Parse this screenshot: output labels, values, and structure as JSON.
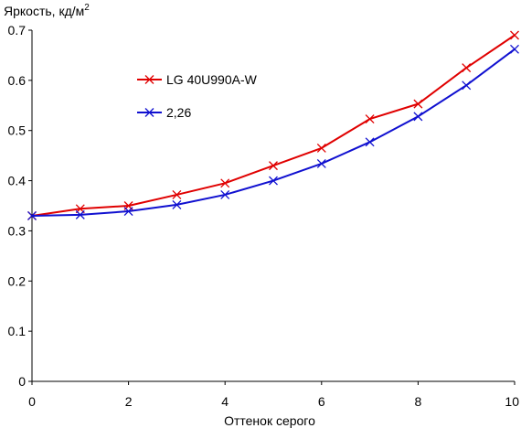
{
  "chart_data": {
    "type": "line",
    "ylabel": "Яркость, кд/м",
    "ylabel_sup": "2",
    "xlabel": "Оттенок серого",
    "xlim": [
      0,
      10
    ],
    "ylim": [
      0,
      0.7
    ],
    "x_ticks": [
      "0",
      "2",
      "4",
      "6",
      "8",
      "10"
    ],
    "y_ticks": [
      "0",
      "0.1",
      "0.2",
      "0.3",
      "0.4",
      "0.5",
      "0.6",
      "0.7"
    ],
    "grid": false,
    "legend_position": "upper-left-inside",
    "x": [
      0,
      1,
      2,
      3,
      4,
      5,
      6,
      7,
      8,
      9,
      10
    ],
    "series": [
      {
        "name": "LG 40U990A-W",
        "color": "#e00000",
        "marker": "x",
        "values": [
          0.33,
          0.344,
          0.35,
          0.372,
          0.395,
          0.43,
          0.465,
          0.523,
          0.553,
          0.625,
          0.69
        ]
      },
      {
        "name": "2,26",
        "color": "#1010d0",
        "marker": "x",
        "values": [
          0.33,
          0.332,
          0.339,
          0.352,
          0.372,
          0.4,
          0.434,
          0.477,
          0.528,
          0.59,
          0.662
        ]
      }
    ]
  }
}
